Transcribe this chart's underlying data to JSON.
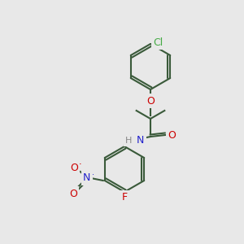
{
  "background_color": "#e8e8e8",
  "bond_color": "#3a5a3a",
  "atom_colors": {
    "O": "#cc0000",
    "N_amide": "#2222cc",
    "N_nitro": "#2222cc",
    "Cl": "#44aa44",
    "F": "#cc0000",
    "H": "#888888",
    "O_nitro_minus": "#cc0000",
    "O_nitro": "#cc0000"
  },
  "figsize": [
    3.0,
    3.0
  ],
  "dpi": 100
}
